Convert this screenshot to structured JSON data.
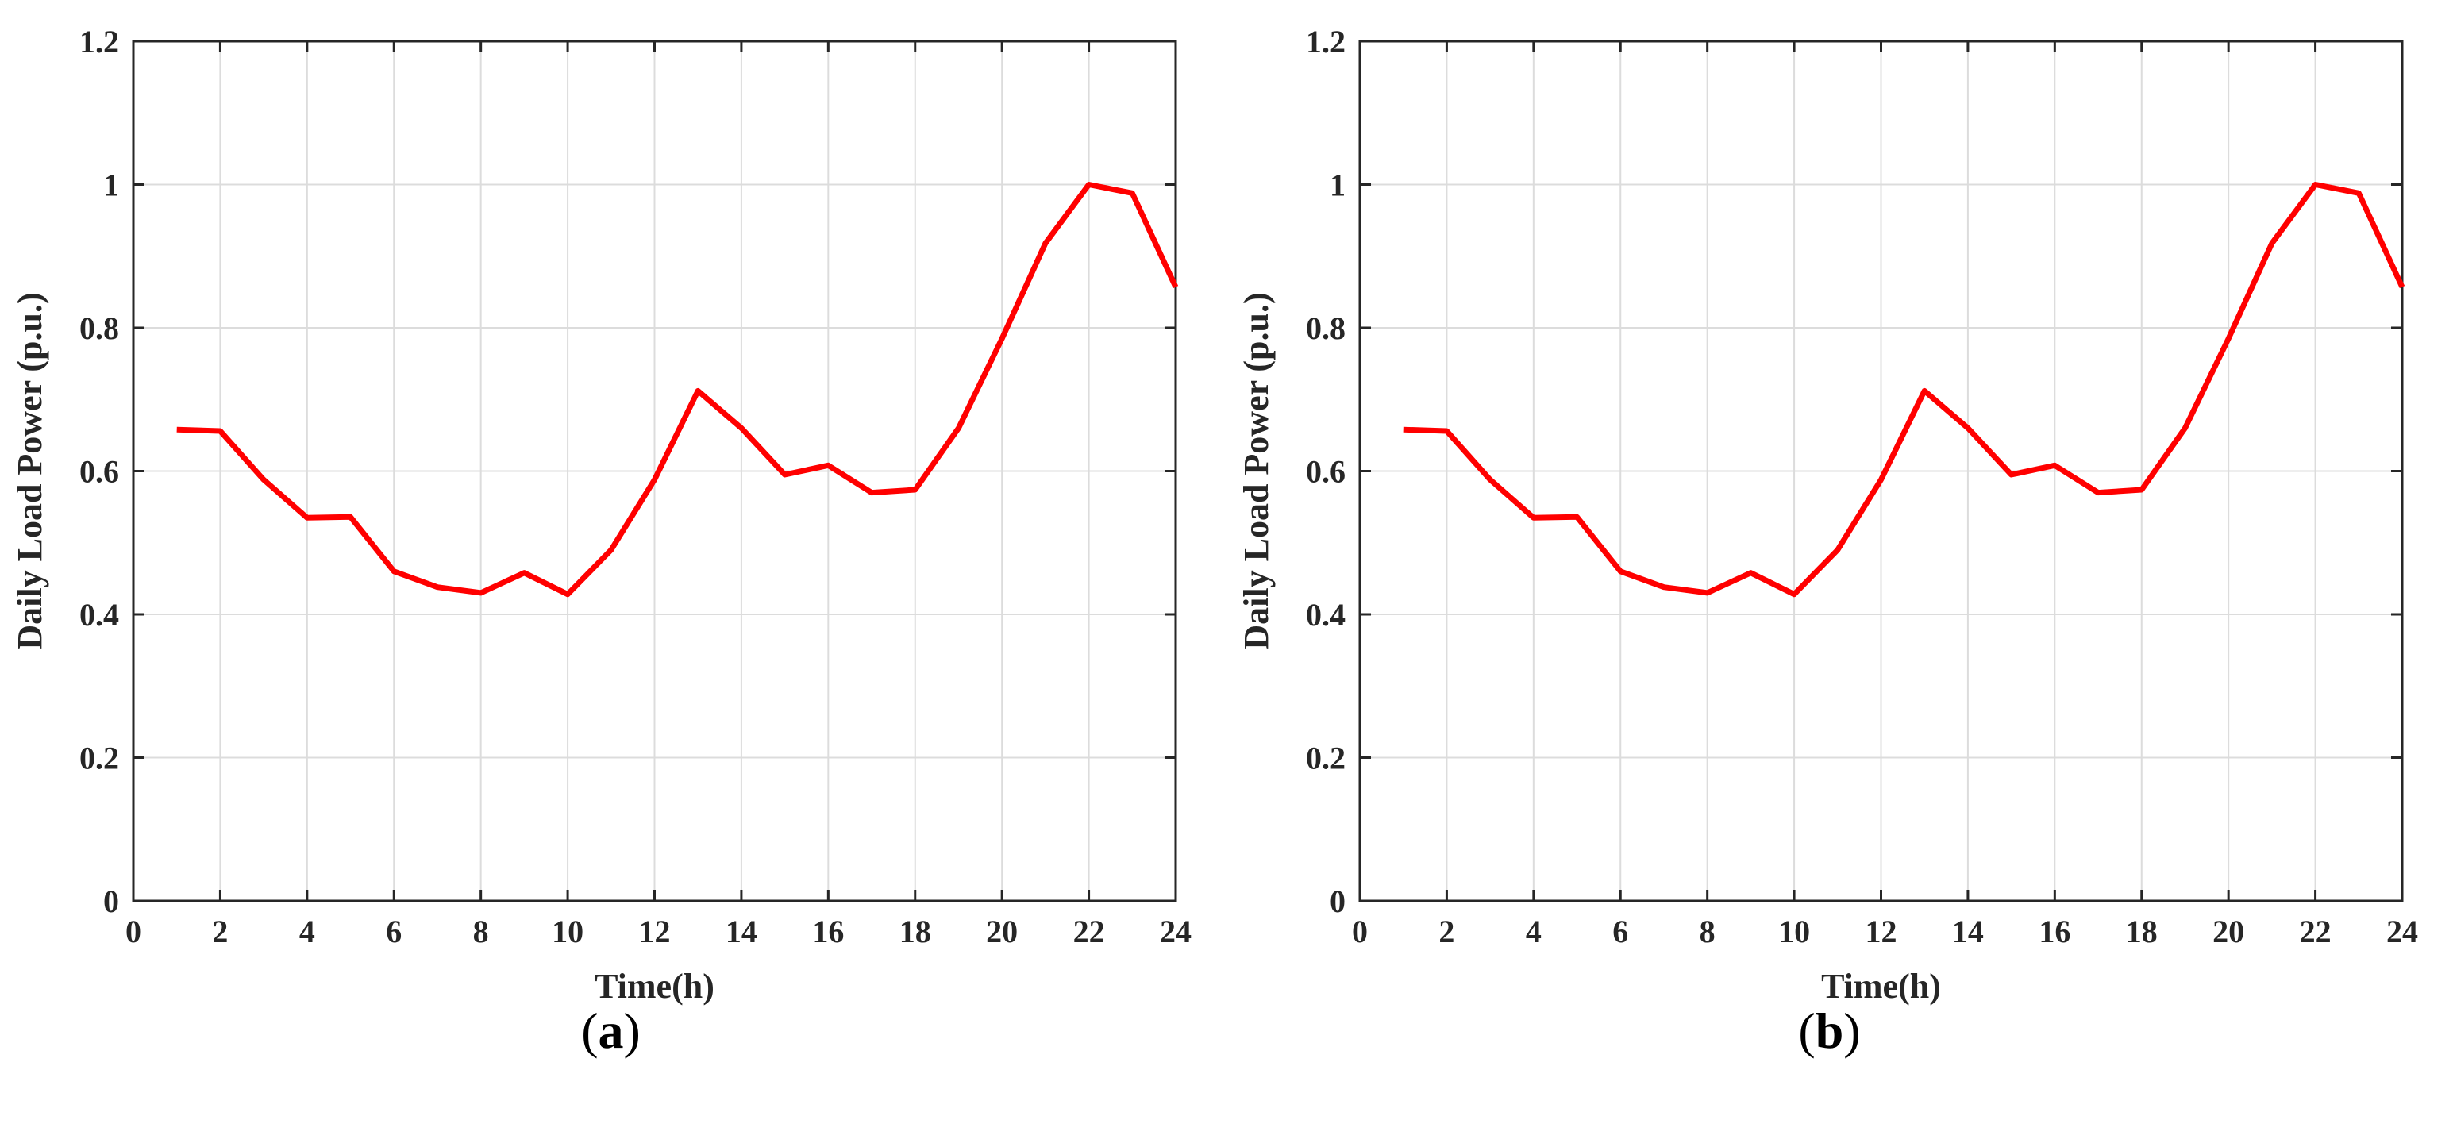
{
  "figure": {
    "panels": [
      {
        "caption_open": "(",
        "caption_letter": "a",
        "caption_close": ")"
      },
      {
        "caption_open": "(",
        "caption_letter": "b",
        "caption_close": ")"
      }
    ]
  },
  "chart_data": [
    {
      "type": "line",
      "title": "",
      "xlabel": "Time(h)",
      "ylabel": "Daily Load Power (p.u.)",
      "xlim": [
        0,
        24
      ],
      "ylim": [
        0,
        1.2
      ],
      "xticks": [
        0,
        2,
        4,
        6,
        8,
        10,
        12,
        14,
        16,
        18,
        20,
        22,
        24
      ],
      "yticks": [
        0,
        0.2,
        0.4,
        0.6,
        0.8,
        1,
        1.2
      ],
      "xtick_labels": [
        "0",
        "2",
        "4",
        "6",
        "8",
        "10",
        "12",
        "14",
        "16",
        "18",
        "20",
        "22",
        "24"
      ],
      "ytick_labels": [
        "0",
        "0.2",
        "0.4",
        "0.6",
        "0.8",
        "1",
        "1.2"
      ],
      "grid": true,
      "legend": "none",
      "series": [
        {
          "color": "#ff0000",
          "x": [
            1,
            2,
            3,
            4,
            5,
            6,
            7,
            8,
            9,
            10,
            11,
            12,
            13,
            14,
            15,
            16,
            17,
            18,
            19,
            20,
            21,
            22,
            23,
            24
          ],
          "y": [
            0.658,
            0.656,
            0.588,
            0.535,
            0.536,
            0.46,
            0.438,
            0.43,
            0.458,
            0.428,
            0.49,
            0.588,
            0.712,
            0.66,
            0.595,
            0.608,
            0.57,
            0.574,
            0.66,
            0.785,
            0.918,
            1.0,
            0.988,
            0.857
          ]
        }
      ]
    },
    {
      "type": "line",
      "title": "",
      "xlabel": "Time(h)",
      "ylabel": "Daily Load Power (p.u.)",
      "xlim": [
        0,
        24
      ],
      "ylim": [
        0,
        1.2
      ],
      "xticks": [
        0,
        2,
        4,
        6,
        8,
        10,
        12,
        14,
        16,
        18,
        20,
        22,
        24
      ],
      "yticks": [
        0,
        0.2,
        0.4,
        0.6,
        0.8,
        1,
        1.2
      ],
      "xtick_labels": [
        "0",
        "2",
        "4",
        "6",
        "8",
        "10",
        "12",
        "14",
        "16",
        "18",
        "20",
        "22",
        "24"
      ],
      "ytick_labels": [
        "0",
        "0.2",
        "0.4",
        "0.6",
        "0.8",
        "1",
        "1.2"
      ],
      "grid": true,
      "legend": "none",
      "series": [
        {
          "color": "#ff0000",
          "x": [
            1,
            2,
            3,
            4,
            5,
            6,
            7,
            8,
            9,
            10,
            11,
            12,
            13,
            14,
            15,
            16,
            17,
            18,
            19,
            20,
            21,
            22,
            23,
            24
          ],
          "y": [
            0.658,
            0.656,
            0.588,
            0.535,
            0.536,
            0.46,
            0.438,
            0.43,
            0.458,
            0.428,
            0.49,
            0.588,
            0.712,
            0.66,
            0.595,
            0.608,
            0.57,
            0.574,
            0.66,
            0.785,
            0.918,
            1.0,
            0.988,
            0.857
          ]
        }
      ]
    }
  ]
}
